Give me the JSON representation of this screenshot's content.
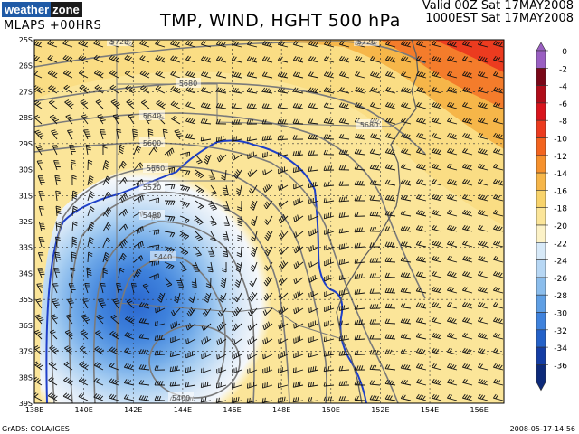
{
  "brand": {
    "part1": "weather",
    "part2": "zone"
  },
  "model_label": "MLAPS +00HRS",
  "title": "TMP, WIND, HGHT 500 hPa",
  "valid_line1": "Valid 00Z Sat 17MAY2008",
  "valid_line2": "1000EST Sat 17MAY2008",
  "credit": "GrADS: COLA/IGES",
  "timestamp": "2008-05-17-14:56",
  "map": {
    "lon_range": [
      138,
      157
    ],
    "lat_range": [
      -39,
      -25
    ],
    "lon_labels": [
      "138E",
      "140E",
      "142E",
      "144E",
      "146E",
      "148E",
      "150E",
      "152E",
      "154E",
      "156E"
    ],
    "lat_labels": [
      "25S",
      "26S",
      "27S",
      "28S",
      "29S",
      "30S",
      "31S",
      "32S",
      "33S",
      "34S",
      "35S",
      "36S",
      "37S",
      "38S",
      "39S"
    ],
    "height_contour_labels": [
      "5720",
      "5720",
      "5680",
      "5680",
      "5640",
      "5600",
      "5560",
      "5520",
      "5480",
      "5440",
      "5400"
    ],
    "colors": {
      "zero_isotherm_line": "#1e3fc8",
      "height_contours": "#7a7a7a",
      "coastline": "#606060"
    }
  },
  "colorbar": {
    "labels": [
      "0",
      "-2",
      "-4",
      "-6",
      "-8",
      "-10",
      "-12",
      "-14",
      "-16",
      "-18",
      "-20",
      "-22",
      "-24",
      "-26",
      "-28",
      "-30",
      "-32",
      "-34",
      "-36"
    ],
    "colors": [
      "#9a5fc2",
      "#7a0818",
      "#b00d1a",
      "#d9141c",
      "#ec3b1f",
      "#f3641f",
      "#f6912d",
      "#f6b649",
      "#f8d36b",
      "#fbe599",
      "#fcf2c7",
      "#d7e9f8",
      "#b7d7f4",
      "#8bbdec",
      "#5f9fe4",
      "#3f82dc",
      "#2461c8",
      "#143da4",
      "#0d2a7a"
    ]
  }
}
